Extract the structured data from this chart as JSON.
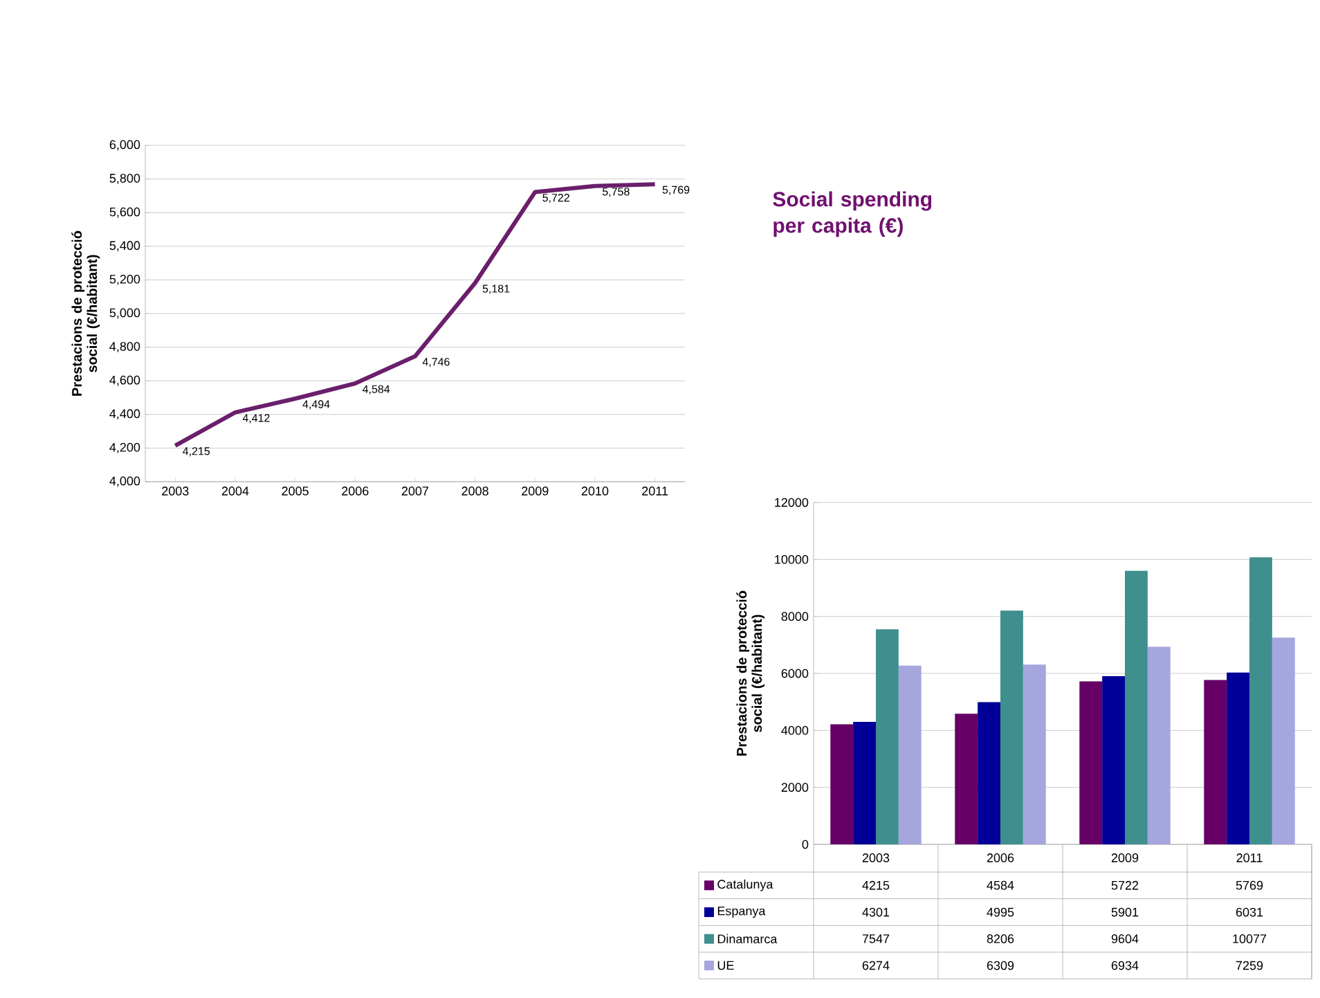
{
  "chart_data": [
    {
      "type": "line",
      "ylabel": "Prestacions de protecció social (€/habitant)",
      "categories": [
        "2003",
        "2004",
        "2005",
        "2006",
        "2007",
        "2008",
        "2009",
        "2010",
        "2011"
      ],
      "series": [
        {
          "color": "#6b1f6b",
          "values": [
            4215,
            4412,
            4494,
            4584,
            4746,
            5181,
            5722,
            5758,
            5769
          ],
          "value_labels": [
            "4,215",
            "4,412",
            "4,494",
            "4,584",
            "4,746",
            "5,181",
            "5,722",
            "5,758",
            "5,769"
          ]
        }
      ],
      "ylim": [
        4000,
        6000
      ],
      "yticks": [
        {
          "value": 4000,
          "label": "4,000"
        },
        {
          "value": 4200,
          "label": "4,200"
        },
        {
          "value": 4400,
          "label": "4,400"
        },
        {
          "value": 4600,
          "label": "4,600"
        },
        {
          "value": 4800,
          "label": "4,800"
        },
        {
          "value": 5000,
          "label": "5,000"
        },
        {
          "value": 5200,
          "label": "5,200"
        },
        {
          "value": 5400,
          "label": "5,400"
        },
        {
          "value": 5600,
          "label": "5,600"
        },
        {
          "value": 5800,
          "label": "5,800"
        },
        {
          "value": 6000,
          "label": "6,000"
        }
      ],
      "grid": "y",
      "marker": "none",
      "line_style": "solid"
    },
    {
      "type": "other",
      "title": "Social spending per capita (€)"
    },
    {
      "type": "bar",
      "ylabel": "Prestacions de protecció social (€/habitant)",
      "categories": [
        "2003",
        "2006",
        "2009",
        "2011"
      ],
      "series": [
        {
          "name": "Catalunya",
          "color": "#660066",
          "values": [
            4215,
            4584,
            5722,
            5769
          ]
        },
        {
          "name": "Espanya",
          "color": "#000099",
          "values": [
            4301,
            4995,
            5901,
            6031
          ]
        },
        {
          "name": "Dinamarca",
          "color": "#3f8f8f",
          "values": [
            7547,
            8206,
            9604,
            10077
          ]
        },
        {
          "name": "UE",
          "color": "#a6a6de",
          "values": [
            6274,
            6309,
            6934,
            7259
          ]
        }
      ],
      "ylim": [
        0,
        12000
      ],
      "yticks": [
        0,
        2000,
        4000,
        6000,
        8000,
        10000,
        12000
      ],
      "grid": "y",
      "legend": "bottom",
      "data_labels": true
    }
  ]
}
